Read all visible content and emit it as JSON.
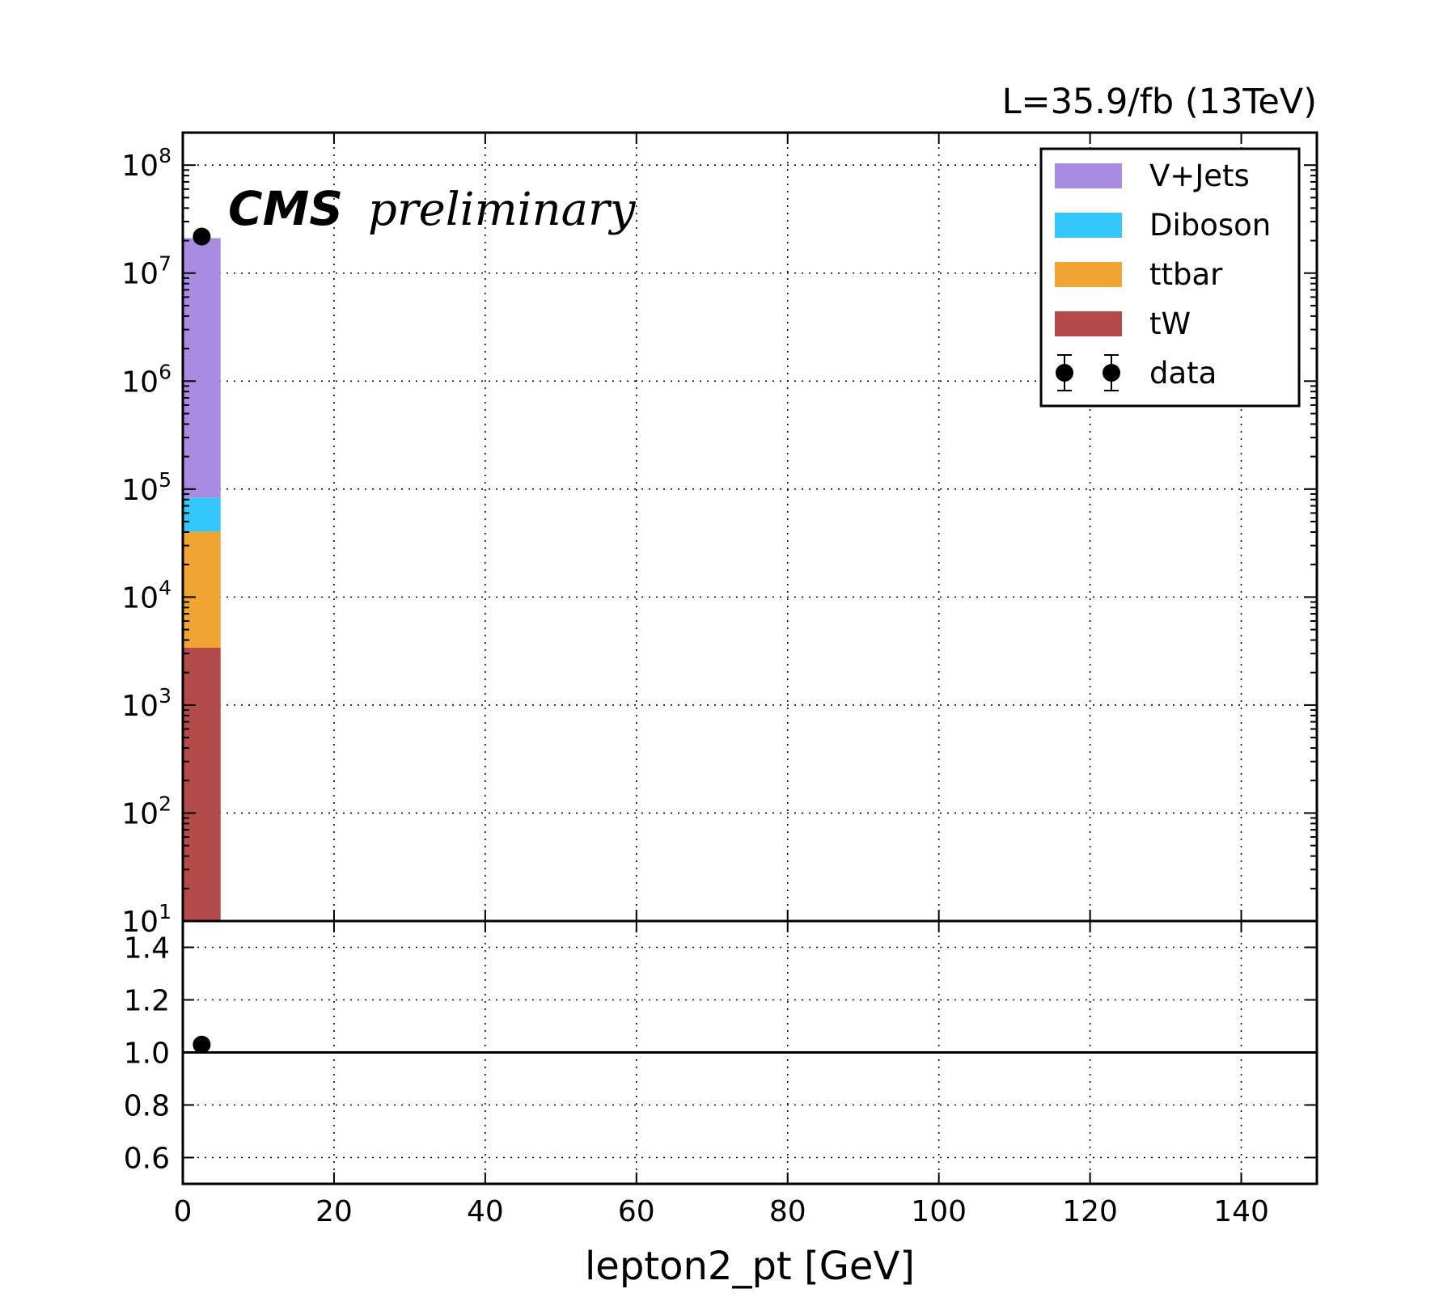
{
  "header": {
    "lumi_label": "L=35.9/fb (13TeV)",
    "cms_label": "CMS",
    "preliminary_label": "preliminary"
  },
  "chart_data": [
    {
      "type": "bar",
      "stacked": true,
      "log_y": true,
      "xlabel": "",
      "ylabel": "",
      "xlim": [
        0,
        150
      ],
      "ylim": [
        10,
        200000000
      ],
      "x_ticks": [
        "0",
        "20",
        "40",
        "60",
        "80",
        "100",
        "120",
        "140"
      ],
      "y_ticks": [
        {
          "base": "10",
          "exp": "1",
          "value": 10
        },
        {
          "base": "10",
          "exp": "2",
          "value": 100
        },
        {
          "base": "10",
          "exp": "3",
          "value": 1000
        },
        {
          "base": "10",
          "exp": "4",
          "value": 10000
        },
        {
          "base": "10",
          "exp": "5",
          "value": 100000
        },
        {
          "base": "10",
          "exp": "6",
          "value": 1000000
        },
        {
          "base": "10",
          "exp": "7",
          "value": 10000000
        },
        {
          "base": "10",
          "exp": "8",
          "value": 100000000
        }
      ],
      "grid": true,
      "legend_position": "top-right",
      "bins": [
        {
          "x_low": 0,
          "x_high": 5
        }
      ],
      "series": [
        {
          "name": "tW",
          "color": "#b44b4b",
          "values": [
            3400
          ]
        },
        {
          "name": "ttbar",
          "color": "#f0a432",
          "values": [
            37000
          ]
        },
        {
          "name": "Diboson",
          "color": "#33c7fb",
          "values": [
            43000
          ]
        },
        {
          "name": "V+Jets",
          "color": "#a98ce2",
          "values": [
            21000000
          ]
        }
      ],
      "data_points": {
        "name": "data",
        "x": [
          2.5
        ],
        "y": [
          21800000
        ]
      }
    },
    {
      "type": "scatter",
      "xlabel": "lepton2_pt [GeV]",
      "ylabel": "",
      "xlim": [
        0,
        150
      ],
      "ylim": [
        0.5,
        1.5
      ],
      "y_ticks": [
        "0.6",
        "0.8",
        "1.0",
        "1.2",
        "1.4"
      ],
      "x_ticks": [
        "0",
        "20",
        "40",
        "60",
        "80",
        "100",
        "120",
        "140"
      ],
      "grid": true,
      "reference_line": 1.0,
      "points": {
        "x": [
          2.5
        ],
        "y": [
          1.03
        ]
      }
    }
  ]
}
